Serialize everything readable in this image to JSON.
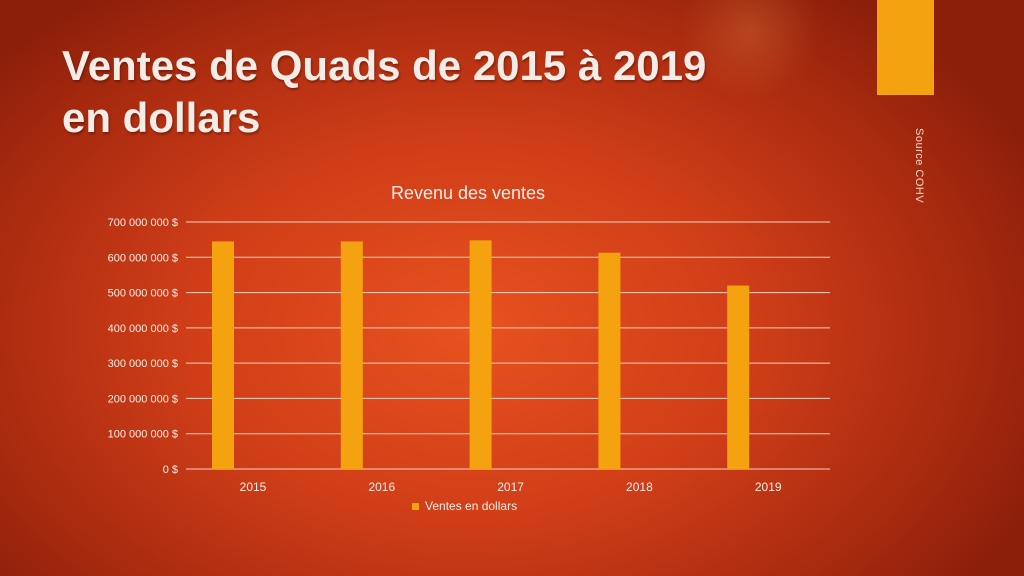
{
  "slide": {
    "title_line1": "Ventes de Quads de 2015 à 2019",
    "title_line2": "en dollars",
    "source": "Source COHV"
  },
  "chart_data": {
    "type": "bar",
    "title": "Revenu des ventes",
    "categories": [
      "2015",
      "2016",
      "2017",
      "2018",
      "2019"
    ],
    "series": [
      {
        "name": "Ventes en dollars",
        "values": [
          645000000,
          645000000,
          648000000,
          613000000,
          520000000
        ],
        "color": "#f4a20f"
      }
    ],
    "ylim": [
      0,
      700000000
    ],
    "yticks": [
      {
        "value": 0,
        "label": "0 $"
      },
      {
        "value": 100000000,
        "label": "100 000 000 $"
      },
      {
        "value": 200000000,
        "label": "200 000 000 $"
      },
      {
        "value": 300000000,
        "label": "300 000 000 $"
      },
      {
        "value": 400000000,
        "label": "400 000 000 $"
      },
      {
        "value": 500000000,
        "label": "500 000 000 $"
      },
      {
        "value": 600000000,
        "label": "600 000 000 $"
      },
      {
        "value": 700000000,
        "label": "700 000 000 $"
      }
    ],
    "grid": true,
    "legend_position": "bottom",
    "colors": {
      "bar": "#f4a20f",
      "text": "#fbeee6",
      "grid": "#f3d2c2"
    }
  }
}
